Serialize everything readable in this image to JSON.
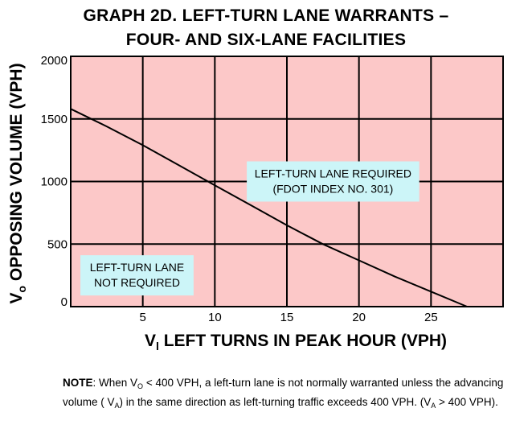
{
  "title_line1": "GRAPH 2D.  LEFT-TURN LANE WARRANTS –",
  "title_line2": "FOUR- AND SIX-LANE FACILITIES",
  "chart_data": {
    "type": "line",
    "xlabel_main": "V",
    "xlabel_sub": "l",
    "xlabel_rest": " LEFT TURNS IN PEAK HOUR (VPH)",
    "ylabel_main": "V",
    "ylabel_sub": "o",
    "ylabel_rest": " OPPOSING VOLUME (VPH)",
    "xlim": [
      0,
      30
    ],
    "ylim": [
      0,
      2000
    ],
    "x_ticks": [
      5,
      10,
      15,
      20,
      25
    ],
    "y_ticks": [
      0,
      500,
      1000,
      1500,
      2000
    ],
    "grid": true,
    "background_color": "#fcc8c8",
    "line_color": "#000000",
    "series": [
      {
        "x": [
          0,
          2.5,
          5,
          7.5,
          10,
          12.5,
          15,
          17.5,
          20,
          22.5,
          25,
          27.5
        ],
        "y": [
          1580,
          1440,
          1290,
          1130,
          970,
          810,
          650,
          500,
          370,
          240,
          120,
          0
        ]
      }
    ],
    "annotations": [
      {
        "lines": [
          "LEFT-TURN LANE REQUIRED",
          "(FDOT INDEX NO. 301)"
        ],
        "x": 18.2,
        "y": 1000,
        "box_color": "#ccf5f8"
      },
      {
        "lines": [
          "LEFT-TURN LANE",
          "NOT REQUIRED"
        ],
        "x": 4.6,
        "y": 250,
        "box_color": "#ccf5f8"
      }
    ]
  },
  "note": {
    "label": "NOTE",
    "part1": ":  When V",
    "sub1": "O",
    "part2": " < 400 VPH, a left-turn lane is not normally warranted unless the advancing volume ( V",
    "sub2": "A",
    "part3": ") in the same direction as left-turning traffic exceeds 400 VPH. (V",
    "sub3": "A",
    "part4": " > 400 VPH)."
  }
}
